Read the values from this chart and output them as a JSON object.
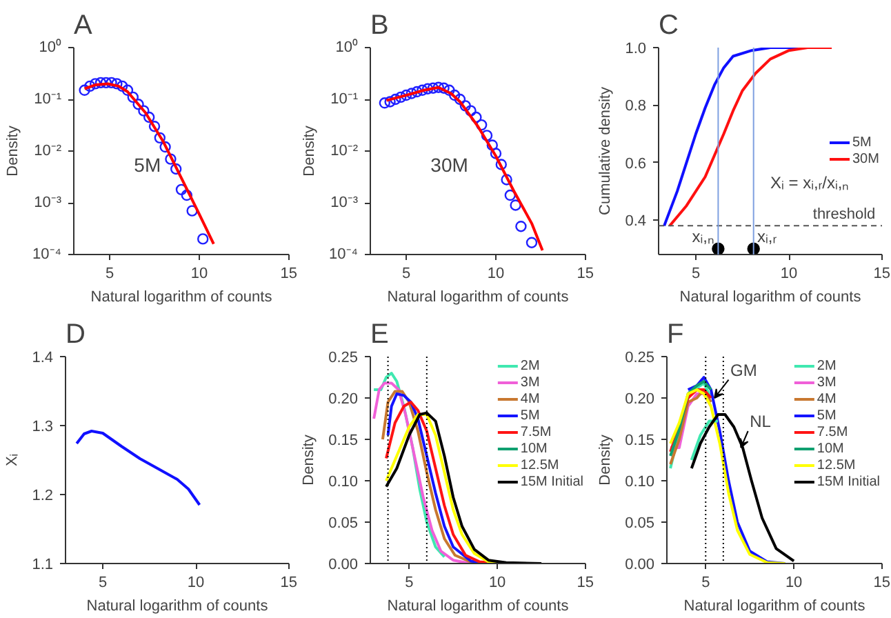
{
  "chart_data": [
    {
      "type": "scatter",
      "title": "A",
      "xlabel": "Natural logarithm of counts",
      "ylabel": "Density",
      "log": "y",
      "xlim": [
        3,
        15
      ],
      "xticks": [
        5,
        10,
        15
      ],
      "ylim": [
        0.0001,
        1
      ],
      "yticks": [
        {
          "value": 0.0001,
          "label": "10⁻⁴"
        },
        {
          "value": 0.001,
          "label": "10⁻³"
        },
        {
          "value": 0.01,
          "label": "10⁻²"
        },
        {
          "value": 0.1,
          "label": "10⁻¹"
        },
        {
          "value": 1,
          "label": "10⁰"
        }
      ],
      "annotations": [
        "5M"
      ],
      "series": [
        {
          "type": "scatter",
          "marker": "circle",
          "color": "#2020ff",
          "x": [
            3.6,
            3.9,
            4.2,
            4.5,
            4.8,
            5.1,
            5.4,
            5.7,
            6.0,
            6.3,
            6.6,
            6.9,
            7.2,
            7.5,
            7.8,
            8.1,
            8.4,
            8.7,
            9.0,
            9.3,
            9.6,
            10.2
          ],
          "values": [
            0.15,
            0.18,
            0.2,
            0.21,
            0.21,
            0.21,
            0.2,
            0.18,
            0.15,
            0.11,
            0.08,
            0.06,
            0.045,
            0.03,
            0.018,
            0.012,
            0.007,
            0.0045,
            0.0018,
            0.0014,
            0.0007,
            0.0002
          ]
        },
        {
          "type": "line",
          "color": "#ff0000",
          "x": [
            3.6,
            4.2,
            4.9,
            5.5,
            6.0,
            7.0,
            8.0,
            9.0,
            10.0,
            10.8
          ],
          "values": [
            0.16,
            0.19,
            0.2,
            0.18,
            0.14,
            0.055,
            0.015,
            0.003,
            0.0006,
            0.00016
          ]
        }
      ]
    },
    {
      "type": "scatter",
      "title": "B",
      "xlabel": "Natural logarithm of counts",
      "ylabel": "Density",
      "log": "y",
      "xlim": [
        3,
        15
      ],
      "xticks": [
        5,
        10,
        15
      ],
      "ylim": [
        0.0001,
        1
      ],
      "yticks": [
        {
          "value": 0.0001,
          "label": "10⁻⁴"
        },
        {
          "value": 0.001,
          "label": "10⁻³"
        },
        {
          "value": 0.01,
          "label": "10⁻²"
        },
        {
          "value": 0.1,
          "label": "10⁻¹"
        },
        {
          "value": 1,
          "label": "10⁰"
        }
      ],
      "annotations": [
        "30M"
      ],
      "series": [
        {
          "type": "scatter",
          "marker": "circle",
          "color": "#2020ff",
          "x": [
            3.8,
            4.1,
            4.4,
            4.7,
            5.0,
            5.3,
            5.6,
            5.9,
            6.2,
            6.5,
            6.8,
            7.1,
            7.4,
            7.7,
            8.0,
            8.3,
            8.6,
            8.9,
            9.2,
            9.5,
            9.8,
            10.0,
            10.3,
            10.6,
            10.8,
            11.1,
            11.4,
            12.0
          ],
          "values": [
            0.085,
            0.09,
            0.1,
            0.11,
            0.12,
            0.13,
            0.14,
            0.15,
            0.16,
            0.165,
            0.17,
            0.165,
            0.15,
            0.12,
            0.1,
            0.075,
            0.06,
            0.045,
            0.032,
            0.02,
            0.013,
            0.009,
            0.0055,
            0.0028,
            0.0014,
            0.0009,
            0.00035,
            0.00017
          ]
        },
        {
          "type": "line",
          "color": "#ff0000",
          "x": [
            3.9,
            5.0,
            6.0,
            6.8,
            7.5,
            8.0,
            9.0,
            10.0,
            11.0,
            12.0,
            12.6
          ],
          "values": [
            0.095,
            0.12,
            0.15,
            0.17,
            0.13,
            0.09,
            0.03,
            0.008,
            0.0017,
            0.0004,
            0.00012
          ]
        }
      ]
    },
    {
      "type": "line",
      "title": "C",
      "xlabel": "Natural logarithm of counts",
      "ylabel": "Cumulative density",
      "xlim": [
        3,
        15
      ],
      "xticks": [
        5,
        10,
        15
      ],
      "ylim": [
        0.28,
        1.0
      ],
      "yticks": [
        0.4,
        0.6,
        0.8,
        {
          "value": 1.0,
          "label": "1.0"
        }
      ],
      "legend": "right",
      "annotations": [
        "Xᵢ = xᵢ,ᵣ/xᵢ,ₙ",
        {
          "text": "xᵢ,ₙ",
          "x": 6.2,
          "y": 0.3
        },
        {
          "text": "xᵢ,ᵣ",
          "x": 8.1,
          "y": 0.3
        }
      ],
      "ref_lines": [
        {
          "axis": "y",
          "value": 0.38,
          "label": "threshold",
          "color": "#555555",
          "line_style": "dashed"
        },
        {
          "axis": "x",
          "value": 6.2,
          "color": "#7fa0e0"
        },
        {
          "axis": "x",
          "value": 8.1,
          "color": "#7fa0e0"
        }
      ],
      "series": [
        {
          "name": "5M",
          "color": "#1010ff",
          "x": [
            3.3,
            4.0,
            4.5,
            5.0,
            5.5,
            6.0,
            6.5,
            7.0,
            8.0,
            9.0,
            10.5
          ],
          "values": [
            0.38,
            0.5,
            0.6,
            0.7,
            0.79,
            0.87,
            0.93,
            0.97,
            0.99,
            1.0,
            1.0
          ]
        },
        {
          "name": "30M",
          "color": "#ff1010",
          "x": [
            3.6,
            4.5,
            5.5,
            6.5,
            7.0,
            7.5,
            8.2,
            9.0,
            10.0,
            11.0,
            12.3
          ],
          "values": [
            0.38,
            0.45,
            0.55,
            0.7,
            0.78,
            0.85,
            0.91,
            0.96,
            0.99,
            1.0,
            1.0
          ]
        },
        {
          "type": "scatter",
          "marker": "circle",
          "color": "#000000",
          "x": [
            6.2,
            8.1
          ],
          "values": [
            0.3,
            0.3
          ]
        }
      ]
    },
    {
      "type": "line",
      "title": "D",
      "xlabel": "Natural logarithm of counts",
      "ylabel": "Xᵢ",
      "xlim": [
        3,
        15
      ],
      "xticks": [
        5,
        10,
        15
      ],
      "ylim": [
        1.1,
        1.4
      ],
      "yticks": [
        1.1,
        1.2,
        1.3,
        1.4
      ],
      "series": [
        {
          "color": "#1010ff",
          "x": [
            3.6,
            4.0,
            4.4,
            5.0,
            6.0,
            7.0,
            8.0,
            9.0,
            9.6,
            10.2
          ],
          "values": [
            1.274,
            1.288,
            1.292,
            1.289,
            1.27,
            1.252,
            1.237,
            1.222,
            1.208,
            1.185
          ]
        }
      ]
    },
    {
      "type": "line",
      "title": "E",
      "xlabel": "Natural logarithm of counts",
      "ylabel": "Density",
      "xlim": [
        2.8,
        15
      ],
      "xticks": [
        5,
        10,
        15
      ],
      "ylim": [
        0,
        0.25
      ],
      "yticks": [
        {
          "value": 0,
          "label": "0.00"
        },
        0.05,
        {
          "value": 0.1,
          "label": "0.10"
        },
        0.15,
        {
          "value": 0.2,
          "label": "0.20"
        },
        0.25
      ],
      "legend": "top right",
      "ref_lines": [
        {
          "axis": "x",
          "value": 3.8,
          "color": "#000000",
          "line_style": "dotted"
        },
        {
          "axis": "x",
          "value": 6.0,
          "color": "#000000",
          "line_style": "dotted"
        }
      ],
      "series": [
        {
          "name": "2M",
          "color": "#40e8b0",
          "x": [
            3.0,
            3.4,
            3.7,
            4.0,
            4.3,
            4.7,
            5.2,
            5.6,
            6.0,
            6.5,
            7.0
          ],
          "values": [
            0.21,
            0.21,
            0.225,
            0.23,
            0.22,
            0.19,
            0.14,
            0.09,
            0.05,
            0.02,
            0.008
          ]
        },
        {
          "name": "3M",
          "color": "#f060d8",
          "x": [
            3.0,
            3.3,
            3.6,
            4.0,
            4.4,
            4.8,
            5.3,
            5.8,
            6.3,
            6.8,
            7.5,
            8.5
          ],
          "values": [
            0.175,
            0.21,
            0.218,
            0.218,
            0.21,
            0.18,
            0.13,
            0.08,
            0.04,
            0.015,
            0.004,
            0
          ]
        },
        {
          "name": "4M",
          "color": "#c87830",
          "x": [
            3.5,
            3.8,
            4.2,
            4.6,
            5.0,
            5.5,
            6.0,
            6.5,
            7.0,
            7.6,
            8.5,
            9.5
          ],
          "values": [
            0.15,
            0.195,
            0.208,
            0.208,
            0.195,
            0.16,
            0.11,
            0.065,
            0.03,
            0.01,
            0.002,
            0
          ]
        },
        {
          "name": "5M",
          "color": "#1414ff",
          "x": [
            3.8,
            4.0,
            4.3,
            4.7,
            5.1,
            5.5,
            6.0,
            6.5,
            7.0,
            7.5,
            8.5,
            9.5
          ],
          "values": [
            0.155,
            0.19,
            0.205,
            0.203,
            0.195,
            0.175,
            0.13,
            0.085,
            0.045,
            0.02,
            0.003,
            0
          ]
        },
        {
          "name": "7.5M",
          "color": "#ff1414",
          "x": [
            3.7,
            4.2,
            4.7,
            5.1,
            5.5,
            6.0,
            6.5,
            7.0,
            7.5,
            8.2,
            9.0,
            10.0
          ],
          "values": [
            0.127,
            0.17,
            0.19,
            0.195,
            0.185,
            0.16,
            0.115,
            0.07,
            0.035,
            0.01,
            0.002,
            0
          ]
        },
        {
          "name": "10M",
          "color": "#10a070"
        },
        {
          "name": "12.5M",
          "color": "#ffff00",
          "x": [
            3.7,
            4.3,
            5.0,
            5.5,
            6.0,
            6.5,
            7.0,
            7.5,
            8.0,
            8.7,
            9.5,
            10.5
          ],
          "values": [
            0.1,
            0.13,
            0.165,
            0.18,
            0.18,
            0.155,
            0.11,
            0.065,
            0.035,
            0.012,
            0.002,
            0
          ]
        },
        {
          "name": "15M Initial",
          "color": "#000000",
          "x": [
            3.7,
            4.3,
            5.0,
            5.6,
            6.0,
            6.5,
            7.0,
            7.5,
            8.0,
            8.7,
            9.5,
            10.5,
            12.5
          ],
          "values": [
            0.093,
            0.115,
            0.155,
            0.18,
            0.182,
            0.172,
            0.13,
            0.08,
            0.045,
            0.017,
            0.004,
            0.001,
            0
          ]
        }
      ]
    },
    {
      "type": "line",
      "title": "F",
      "xlabel": "Natural logarithm of counts",
      "ylabel": "Density",
      "xlim": [
        2.8,
        15
      ],
      "xticks": [
        5,
        10,
        15
      ],
      "ylim": [
        0,
        0.25
      ],
      "yticks": [
        {
          "value": 0,
          "label": "0.00"
        },
        0.05,
        {
          "value": 0.1,
          "label": "0.10"
        },
        0.15,
        {
          "value": 0.2,
          "label": "0.20"
        },
        0.25
      ],
      "legend": "top right",
      "annotations": [
        {
          "text": "GM",
          "x": 5.5,
          "y": 0.2
        },
        {
          "text": "NL",
          "x": 7.0,
          "y": 0.14
        }
      ],
      "ref_lines": [
        {
          "axis": "x",
          "value": 5.0,
          "color": "#000000",
          "line_style": "dotted"
        },
        {
          "axis": "x",
          "value": 6.0,
          "color": "#000000",
          "line_style": "dotted"
        }
      ],
      "series": [
        {
          "name": "2M",
          "color": "#40e8b0",
          "x": [
            3.0,
            3.5,
            4.0,
            4.5,
            4.9,
            5.3
          ],
          "values": [
            0.115,
            0.16,
            0.2,
            0.212,
            0.218,
            0.2
          ]
        },
        {
          "name": "3M",
          "color": "#f060d8",
          "x": [
            3.0,
            3.5,
            4.0,
            4.5,
            4.9,
            5.3
          ],
          "values": [
            0.14,
            0.14,
            0.19,
            0.205,
            0.205,
            0.19
          ]
        },
        {
          "name": "4M",
          "color": "#c87830",
          "x": [
            3.0,
            3.5,
            4.0,
            4.5,
            4.9,
            5.3
          ],
          "values": [
            0.12,
            0.15,
            0.195,
            0.2,
            0.21,
            0.195
          ]
        },
        {
          "name": "5M",
          "color": "#1414ff",
          "x": [
            4.0,
            4.5,
            4.9,
            5.3,
            5.8,
            6.3,
            6.8,
            7.5,
            8.5,
            9.5
          ],
          "values": [
            0.21,
            0.215,
            0.225,
            0.21,
            0.16,
            0.1,
            0.05,
            0.015,
            0.002,
            0
          ]
        },
        {
          "name": "7.5M",
          "color": "#ff1414",
          "x": [
            3.0,
            3.5,
            4.0,
            4.5,
            4.9,
            5.3
          ],
          "values": [
            0.135,
            0.165,
            0.2,
            0.21,
            0.21,
            0.2
          ]
        },
        {
          "name": "10M",
          "color": "#10a070",
          "x": [
            3.0,
            3.5,
            4.0,
            4.5,
            4.9,
            5.3
          ],
          "values": [
            0.13,
            0.162,
            0.205,
            0.215,
            0.22,
            0.21
          ]
        },
        {
          "name": "12.5M",
          "color": "#ffff00",
          "x": [
            3.0,
            3.5,
            4.0,
            4.5,
            4.9,
            5.3,
            5.8,
            6.3,
            6.8,
            7.5,
            8.5,
            9.5
          ],
          "values": [
            0.145,
            0.17,
            0.205,
            0.21,
            0.205,
            0.19,
            0.145,
            0.085,
            0.04,
            0.011,
            0.001,
            0
          ]
        },
        {
          "color": "#40e8b0",
          "x": [
            4.2,
            4.7,
            5.2,
            5.7
          ],
          "values": [
            0.125,
            0.155,
            0.172,
            0.172
          ]
        },
        {
          "name": "15M Initial",
          "color": "#000000",
          "x": [
            4.2,
            4.7,
            5.2,
            5.7,
            6.1,
            6.6,
            7.1,
            7.6,
            8.2,
            9.0,
            10.0
          ],
          "values": [
            0.115,
            0.145,
            0.165,
            0.18,
            0.18,
            0.165,
            0.14,
            0.1,
            0.055,
            0.018,
            0.003
          ]
        }
      ]
    }
  ]
}
